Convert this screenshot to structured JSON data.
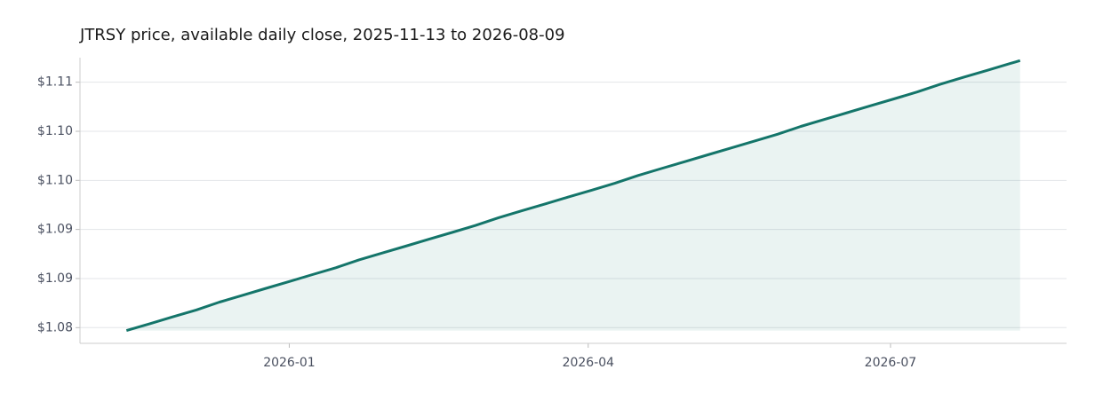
{
  "chart_data": {
    "type": "area",
    "title": "JTRSY price, available daily close, 2025-11-13 to 2026-08-09",
    "x": [
      "2025-11-13",
      "2025-11-20",
      "2025-11-27",
      "2025-12-04",
      "2025-12-11",
      "2025-12-18",
      "2025-12-25",
      "2026-01-01",
      "2026-01-08",
      "2026-01-15",
      "2026-01-22",
      "2026-01-29",
      "2026-02-05",
      "2026-02-12",
      "2026-02-19",
      "2026-02-26",
      "2026-03-05",
      "2026-03-12",
      "2026-03-19",
      "2026-03-26",
      "2026-04-02",
      "2026-04-09",
      "2026-04-16",
      "2026-04-23",
      "2026-04-30",
      "2026-05-07",
      "2026-05-14",
      "2026-05-21",
      "2026-05-28",
      "2026-06-04",
      "2026-06-11",
      "2026-06-18",
      "2026-06-25",
      "2026-07-02",
      "2026-07-09",
      "2026-07-16",
      "2026-07-23",
      "2026-07-30",
      "2026-08-06",
      "2026-08-09"
    ],
    "series": [
      {
        "name": "JTRSY",
        "color": "#14756a",
        "values": [
          1.0822,
          1.0829,
          1.0836,
          1.0843,
          1.0851,
          1.0858,
          1.0865,
          1.0872,
          1.0879,
          1.0886,
          1.0894,
          1.0901,
          1.0908,
          1.0915,
          1.0922,
          1.0929,
          1.0937,
          1.0944,
          1.0951,
          1.0958,
          1.0965,
          1.0972,
          1.098,
          1.0987,
          1.0994,
          1.1001,
          1.1008,
          1.1015,
          1.1022,
          1.103,
          1.1037,
          1.1044,
          1.1051,
          1.1058,
          1.1065,
          1.1073,
          1.108,
          1.1087,
          1.1094,
          1.1097
        ]
      }
    ],
    "xlim": [
      "2025-10-30",
      "2026-08-23"
    ],
    "xticks": [
      {
        "value": "2026-01-01",
        "label": "2026-01"
      },
      {
        "value": "2026-04-01",
        "label": "2026-04"
      },
      {
        "value": "2026-07-01",
        "label": "2026-07"
      }
    ],
    "ylim": [
      1.0809,
      1.11
    ],
    "yticks": [
      {
        "value": 1.0825,
        "label": "$1.08"
      },
      {
        "value": 1.0875,
        "label": "$1.09"
      },
      {
        "value": 1.0925,
        "label": "$1.09"
      },
      {
        "value": 1.0975,
        "label": "$1.10"
      },
      {
        "value": 1.1025,
        "label": "$1.10"
      },
      {
        "value": 1.1075,
        "label": "$1.11"
      }
    ],
    "grid": true
  }
}
